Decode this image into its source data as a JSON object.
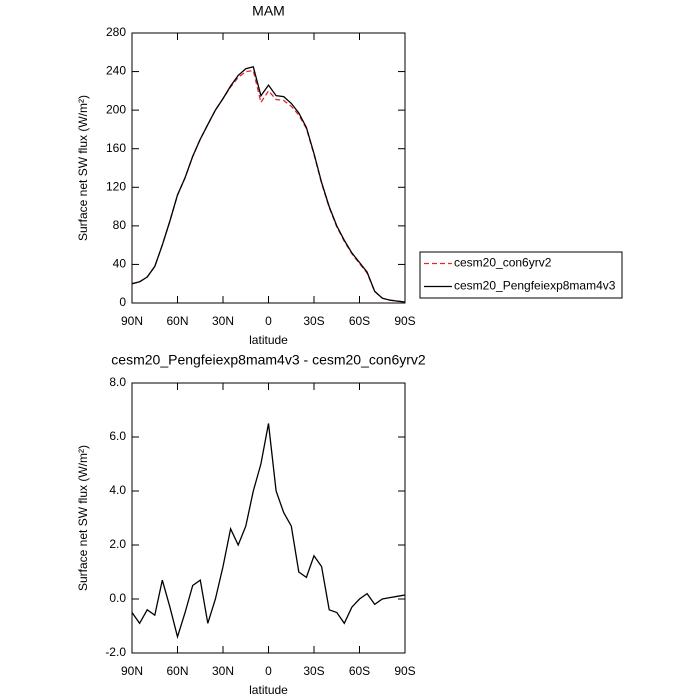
{
  "chart_data": [
    {
      "type": "line",
      "title": "MAM",
      "xlabel": "latitude",
      "ylabel": "Surface net SW flux (W/m²)",
      "x": [
        90,
        85,
        80,
        75,
        70,
        65,
        60,
        55,
        50,
        45,
        40,
        35,
        30,
        25,
        20,
        15,
        10,
        5,
        0,
        -5,
        -10,
        -15,
        -20,
        -25,
        -30,
        -35,
        -40,
        -45,
        -50,
        -55,
        -60,
        -65,
        -70,
        -75,
        -80,
        -85,
        -90
      ],
      "xlim": [
        90,
        -90
      ],
      "xticks": [
        {
          "value": 90,
          "label": "90N"
        },
        {
          "value": 60,
          "label": "60N"
        },
        {
          "value": 30,
          "label": "30N"
        },
        0,
        {
          "value": -30,
          "label": "30S"
        },
        {
          "value": -60,
          "label": "60S"
        },
        {
          "value": -90,
          "label": "90S"
        }
      ],
      "ylim": [
        0,
        280
      ],
      "yticks": [
        0,
        40,
        80,
        120,
        160,
        200,
        240,
        280
      ],
      "legend": "right",
      "series": [
        {
          "name": "cesm20_con6yrv2",
          "color": "#e8262a",
          "line_style": "dashed",
          "values": [
            20,
            22,
            27,
            38,
            60,
            85,
            112,
            130,
            152,
            170,
            185,
            200,
            212,
            224,
            234,
            240,
            241,
            208,
            220,
            211,
            210,
            204,
            195,
            181,
            154,
            124,
            99,
            79,
            64,
            51,
            41,
            31,
            12,
            5,
            3,
            2,
            1
          ]
        },
        {
          "name": "cesm20_Pengfeiexp8mam4v3",
          "color": "#000000",
          "line_style": "solid",
          "values": [
            20,
            22,
            27,
            38,
            60,
            85,
            112,
            130,
            152,
            170,
            185,
            200,
            212,
            225,
            236,
            243,
            245,
            215,
            226,
            215,
            214,
            207,
            197,
            182,
            155,
            125,
            100,
            80,
            65,
            52,
            42,
            32,
            12,
            5,
            3,
            2,
            1
          ]
        }
      ]
    },
    {
      "type": "line",
      "title": "cesm20_Pengfeiexp8mam4v3 - cesm20_con6yrv2",
      "xlabel": "latitude",
      "ylabel": "Surface net SW flux (W/m²)",
      "x": [
        90,
        85,
        80,
        75,
        70,
        65,
        60,
        55,
        50,
        45,
        40,
        35,
        30,
        25,
        20,
        15,
        10,
        5,
        0,
        -5,
        -10,
        -15,
        -20,
        -25,
        -30,
        -35,
        -40,
        -45,
        -50,
        -55,
        -60,
        -65,
        -70,
        -75,
        -80,
        -85,
        -90
      ],
      "xlim": [
        90,
        -90
      ],
      "xticks": [
        {
          "value": 90,
          "label": "90N"
        },
        {
          "value": 60,
          "label": "60N"
        },
        {
          "value": 30,
          "label": "30N"
        },
        0,
        {
          "value": -30,
          "label": "30S"
        },
        {
          "value": -60,
          "label": "60S"
        },
        {
          "value": -90,
          "label": "90S"
        }
      ],
      "ylim": [
        -2,
        8
      ],
      "yticks": [
        {
          "value": -2,
          "label": "-2.0"
        },
        {
          "value": 0,
          "label": "0.0"
        },
        {
          "value": 2,
          "label": "2.0"
        },
        {
          "value": 4,
          "label": "4.0"
        },
        {
          "value": 6,
          "label": "6.0"
        },
        {
          "value": 8,
          "label": "8.0"
        }
      ],
      "series": [
        {
          "color": "#000000",
          "line_style": "solid",
          "values": [
            -0.5,
            -0.9,
            -0.4,
            -0.6,
            0.7,
            -0.3,
            -1.4,
            -0.5,
            0.5,
            0.7,
            -0.9,
            0.0,
            1.2,
            2.6,
            2.0,
            2.7,
            4.0,
            5.0,
            6.5,
            4.0,
            3.2,
            2.7,
            1.0,
            0.8,
            1.6,
            1.2,
            -0.4,
            -0.5,
            -0.9,
            -0.3,
            0.0,
            0.2,
            -0.2,
            0.0,
            0.05,
            0.1,
            0.15
          ]
        }
      ]
    }
  ]
}
